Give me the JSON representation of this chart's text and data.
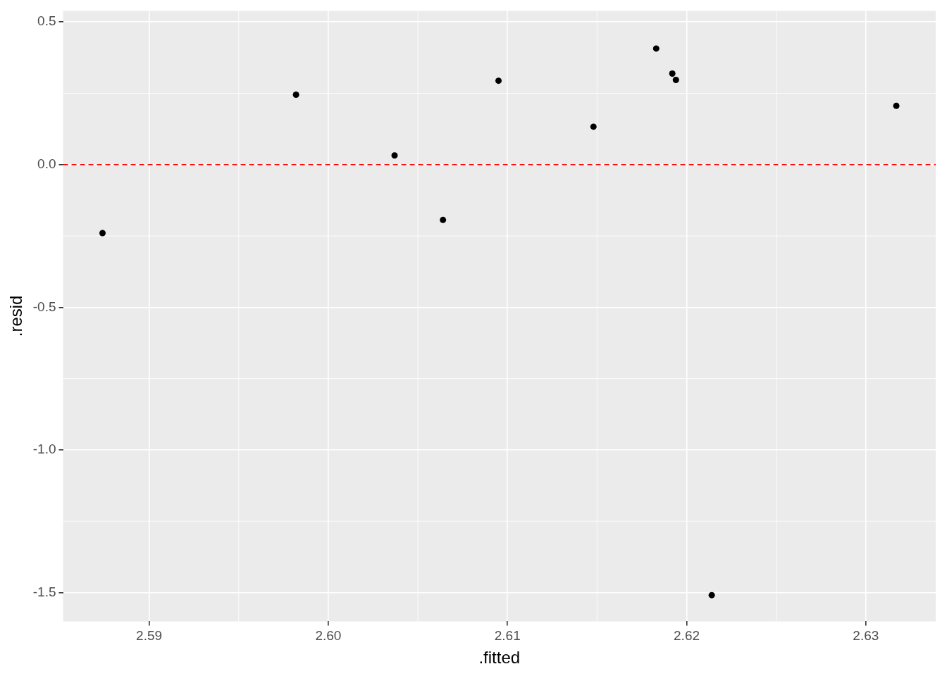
{
  "chart_data": {
    "type": "scatter",
    "xlabel": ".fitted",
    "ylabel": ".resid",
    "x": [
      2.5874,
      2.5982,
      2.6037,
      2.6064,
      2.6095,
      2.6148,
      2.6183,
      2.6192,
      2.6194,
      2.6214,
      2.6317
    ],
    "values": [
      -0.24,
      0.245,
      0.032,
      -0.194,
      0.294,
      0.133,
      0.407,
      0.319,
      0.297,
      -1.509,
      0.206
    ],
    "color": "#000000",
    "marker": "circle",
    "xlim": [
      2.5852,
      2.6339
    ],
    "xticks": [
      2.59,
      {
        "value": 2.6,
        "label": "2.60"
      },
      2.61,
      2.62,
      2.63
    ],
    "ylim": [
      -1.601,
      0.539
    ],
    "yticks": [
      -1.5,
      {
        "value": -1,
        "label": "-1.0"
      },
      -0.5,
      {
        "value": 0,
        "label": "0.0"
      },
      0.5
    ],
    "ref_lines": [
      {
        "axis": "y",
        "value": 0,
        "color": "#ff0000",
        "line_style": "dashed"
      }
    ],
    "grid": true,
    "legend": false
  }
}
